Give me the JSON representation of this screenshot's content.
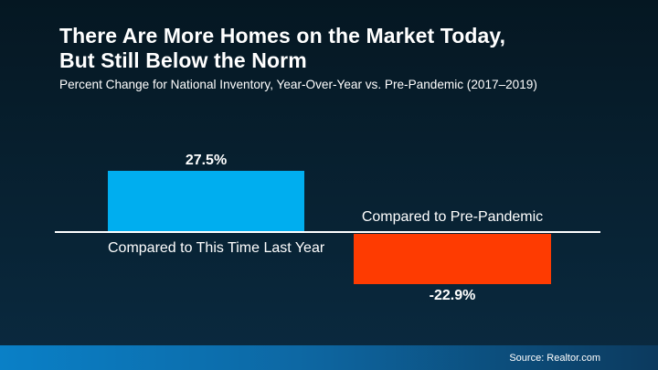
{
  "header": {
    "title_line1": "There Are More Homes on the Market Today,",
    "title_line2": "But Still Below the Norm",
    "subtitle": "Percent Change for National Inventory, Year-Over-Year vs. Pre-Pandemic (2017–2019)"
  },
  "chart_data": {
    "type": "bar",
    "title": "There Are More Homes on the Market Today, But Still Below the Norm",
    "subtitle": "Percent Change for National Inventory, Year-Over-Year vs. Pre-Pandemic (2017–2019)",
    "categories": [
      "Compared to This Time Last Year",
      "Compared to Pre-Pandemic"
    ],
    "values": [
      27.5,
      -22.9
    ],
    "value_labels": [
      "27.5%",
      "-22.9%"
    ],
    "colors": [
      "#00aeef",
      "#fe3b01"
    ],
    "baseline": 0,
    "ylim": [
      -30,
      30
    ],
    "grid": false,
    "legend": false,
    "orientation": "vertical"
  },
  "footer": {
    "source": "Source: Realtor.com"
  },
  "colors": {
    "background_top": "#051722",
    "background_bottom": "#0a2a40",
    "positive_bar": "#00aeef",
    "negative_bar": "#fe3b01",
    "axis_line": "#ffffff",
    "footer_gradient_left": "#0a80c7",
    "footer_gradient_right": "#0c3a5e",
    "text": "#ffffff"
  }
}
